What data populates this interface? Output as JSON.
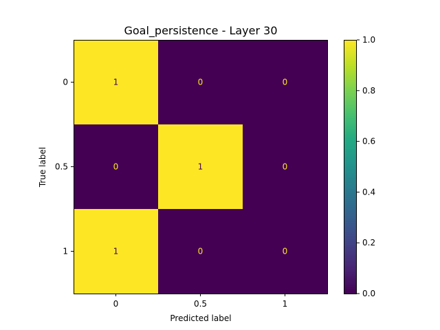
{
  "chart_data": {
    "type": "heatmap",
    "title": "Goal_persistence - Layer 30",
    "xlabel": "Predicted label",
    "ylabel": "True label",
    "x_categories": [
      "0",
      "0.5",
      "1"
    ],
    "y_categories": [
      "0",
      "0.5",
      "1"
    ],
    "values": [
      [
        1,
        0,
        0
      ],
      [
        0,
        1,
        0
      ],
      [
        1,
        0,
        0
      ]
    ],
    "cell_labels": [
      [
        "1",
        "0",
        "0"
      ],
      [
        "0",
        "1",
        "0"
      ],
      [
        "1",
        "0",
        "0"
      ]
    ],
    "colormap": "viridis",
    "colorbar": {
      "range": [
        0.0,
        1.0
      ],
      "ticks": [
        {
          "value": 0.0,
          "label": "0.0"
        },
        {
          "value": 0.2,
          "label": "0.2"
        },
        {
          "value": 0.4,
          "label": "0.4"
        },
        {
          "value": 0.6,
          "label": "0.6"
        },
        {
          "value": 0.8,
          "label": "0.8"
        },
        {
          "value": 1.0,
          "label": "1.0"
        }
      ]
    },
    "colors": {
      "low": "#440154",
      "high": "#fde725",
      "label_on_low": "#fde725",
      "label_on_high": "#440154"
    },
    "grid": false
  }
}
